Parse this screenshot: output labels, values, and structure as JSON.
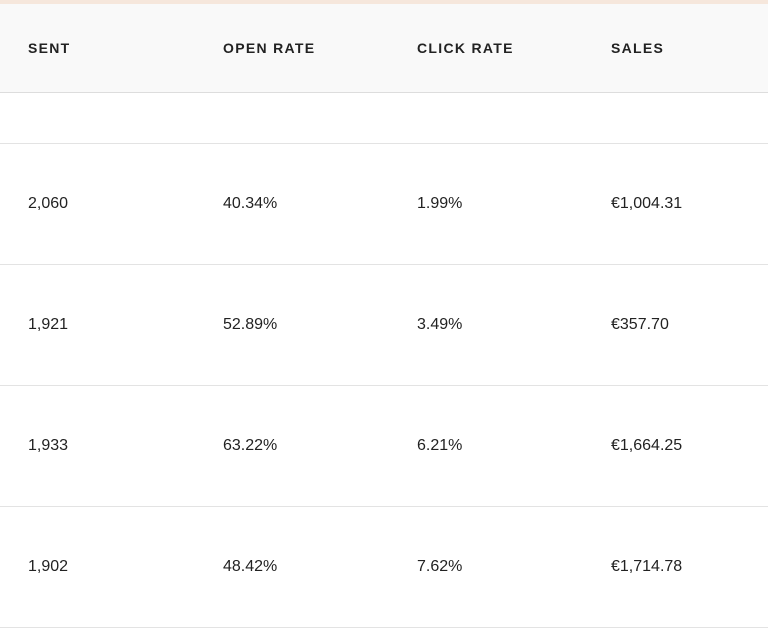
{
  "table": {
    "columns": [
      "SENT",
      "OPEN RATE",
      "CLICK RATE",
      "SALES"
    ],
    "rows": [
      [
        "2,060",
        "40.34%",
        "1.99%",
        "€1,004.31"
      ],
      [
        "1,921",
        "52.89%",
        "3.49%",
        "€357.70"
      ],
      [
        "1,933",
        "63.22%",
        "6.21%",
        "€1,664.25"
      ],
      [
        "1,902",
        "48.42%",
        "7.62%",
        "€1,714.78"
      ]
    ]
  },
  "colors": {
    "header_background": "#f9f9f9",
    "top_accent": "#f6e7dc",
    "divider": "#e3e3e3"
  }
}
